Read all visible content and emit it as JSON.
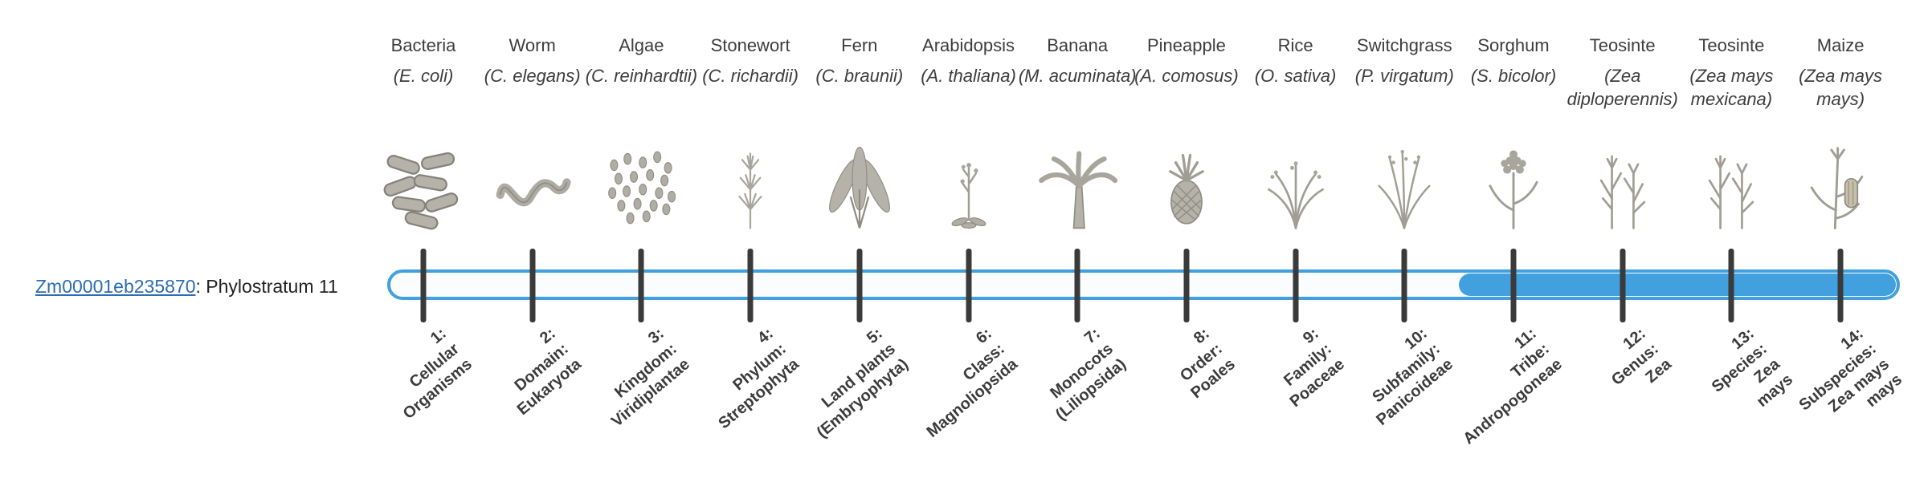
{
  "gene": {
    "id": "Zm00001eb235870",
    "label_suffix": ": Phylostratum 11"
  },
  "bar": {
    "filled_from_stratum": 11,
    "accent_color": "#41a0dd",
    "track_color": "#fafcfd",
    "tick_color": "#3a3a3a"
  },
  "strata": [
    {
      "num": 1,
      "organism": "Bacteria",
      "sci": "(E. coli)",
      "icon": "bacteria",
      "label_lines": [
        "1:",
        "Cellular",
        "Organisms"
      ]
    },
    {
      "num": 2,
      "organism": "Worm",
      "sci": "(C. elegans)",
      "icon": "worm",
      "label_lines": [
        "2:",
        "Domain:",
        "Eukaryota"
      ]
    },
    {
      "num": 3,
      "organism": "Algae",
      "sci": "(C. reinhardtii)",
      "icon": "algae",
      "label_lines": [
        "3:",
        "Kingdom:",
        "Viridiplantae"
      ]
    },
    {
      "num": 4,
      "organism": "Stonewort",
      "sci": "(C. richardii)",
      "icon": "stonewort",
      "label_lines": [
        "4:",
        "Phylum:",
        "Streptophyta"
      ]
    },
    {
      "num": 5,
      "organism": "Fern",
      "sci": "(C. braunii)",
      "icon": "fern",
      "label_lines": [
        "5:",
        "Land plants",
        "(Embryophyta)"
      ]
    },
    {
      "num": 6,
      "organism": "Arabidopsis",
      "sci": "(A. thaliana)",
      "icon": "arabidopsis",
      "label_lines": [
        "6:",
        "Class:",
        "Magnoliopsida"
      ]
    },
    {
      "num": 7,
      "organism": "Banana",
      "sci": "(M. acuminata)",
      "icon": "banana",
      "label_lines": [
        "7:",
        "Monocots",
        "(Liliopsida)"
      ]
    },
    {
      "num": 8,
      "organism": "Pineapple",
      "sci": "(A. comosus)",
      "icon": "pineapple",
      "label_lines": [
        "8:",
        "Order:",
        "Poales"
      ]
    },
    {
      "num": 9,
      "organism": "Rice",
      "sci": "(O. sativa)",
      "icon": "rice",
      "label_lines": [
        "9:",
        "Family:",
        "Poaceae"
      ]
    },
    {
      "num": 10,
      "organism": "Switchgrass",
      "sci": "(P. virgatum)",
      "icon": "switchgrass",
      "label_lines": [
        "10:",
        "Subfamily:",
        "Panicoideae"
      ]
    },
    {
      "num": 11,
      "organism": "Sorghum",
      "sci": "(S. bicolor)",
      "icon": "sorghum",
      "label_lines": [
        "11:",
        "Tribe:",
        "Andropogoneae"
      ]
    },
    {
      "num": 12,
      "organism": "Teosinte",
      "sci": "(Zea diploperennis)",
      "icon": "teosinte",
      "label_lines": [
        "12:",
        "Genus:",
        "Zea"
      ]
    },
    {
      "num": 13,
      "organism": "Teosinte",
      "sci": "(Zea mays mexicana)",
      "icon": "teosinte",
      "label_lines": [
        "13:",
        "Species:",
        "Zea",
        "mays"
      ]
    },
    {
      "num": 14,
      "organism": "Maize",
      "sci": "(Zea mays mays)",
      "icon": "maize",
      "label_lines": [
        "14:",
        "Subspecies:",
        "Zea mays",
        "mays"
      ]
    }
  ]
}
